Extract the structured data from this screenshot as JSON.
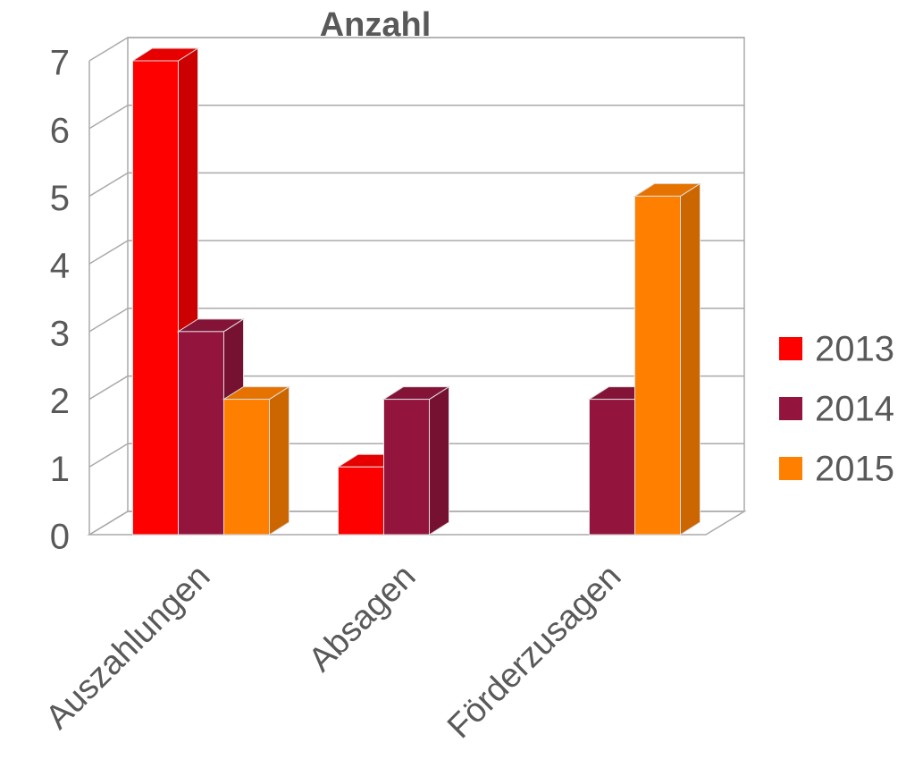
{
  "chart_data": {
    "type": "bar3d",
    "title": "Anzahl",
    "categories": [
      "Auszahlungen",
      "Absagen",
      "Förderzusagen"
    ],
    "series": [
      {
        "name": "2013",
        "color": "#ff0000",
        "values": [
          7,
          1,
          null
        ]
      },
      {
        "name": "2014",
        "color": "#93153e",
        "values": [
          3,
          2,
          2
        ]
      },
      {
        "name": "2015",
        "color": "#ff8000",
        "values": [
          2,
          null,
          5
        ]
      }
    ],
    "ylim": [
      0,
      7
    ],
    "yticks": [
      0,
      1,
      2,
      3,
      4,
      5,
      6,
      7
    ],
    "grid": true,
    "legend": "right"
  }
}
